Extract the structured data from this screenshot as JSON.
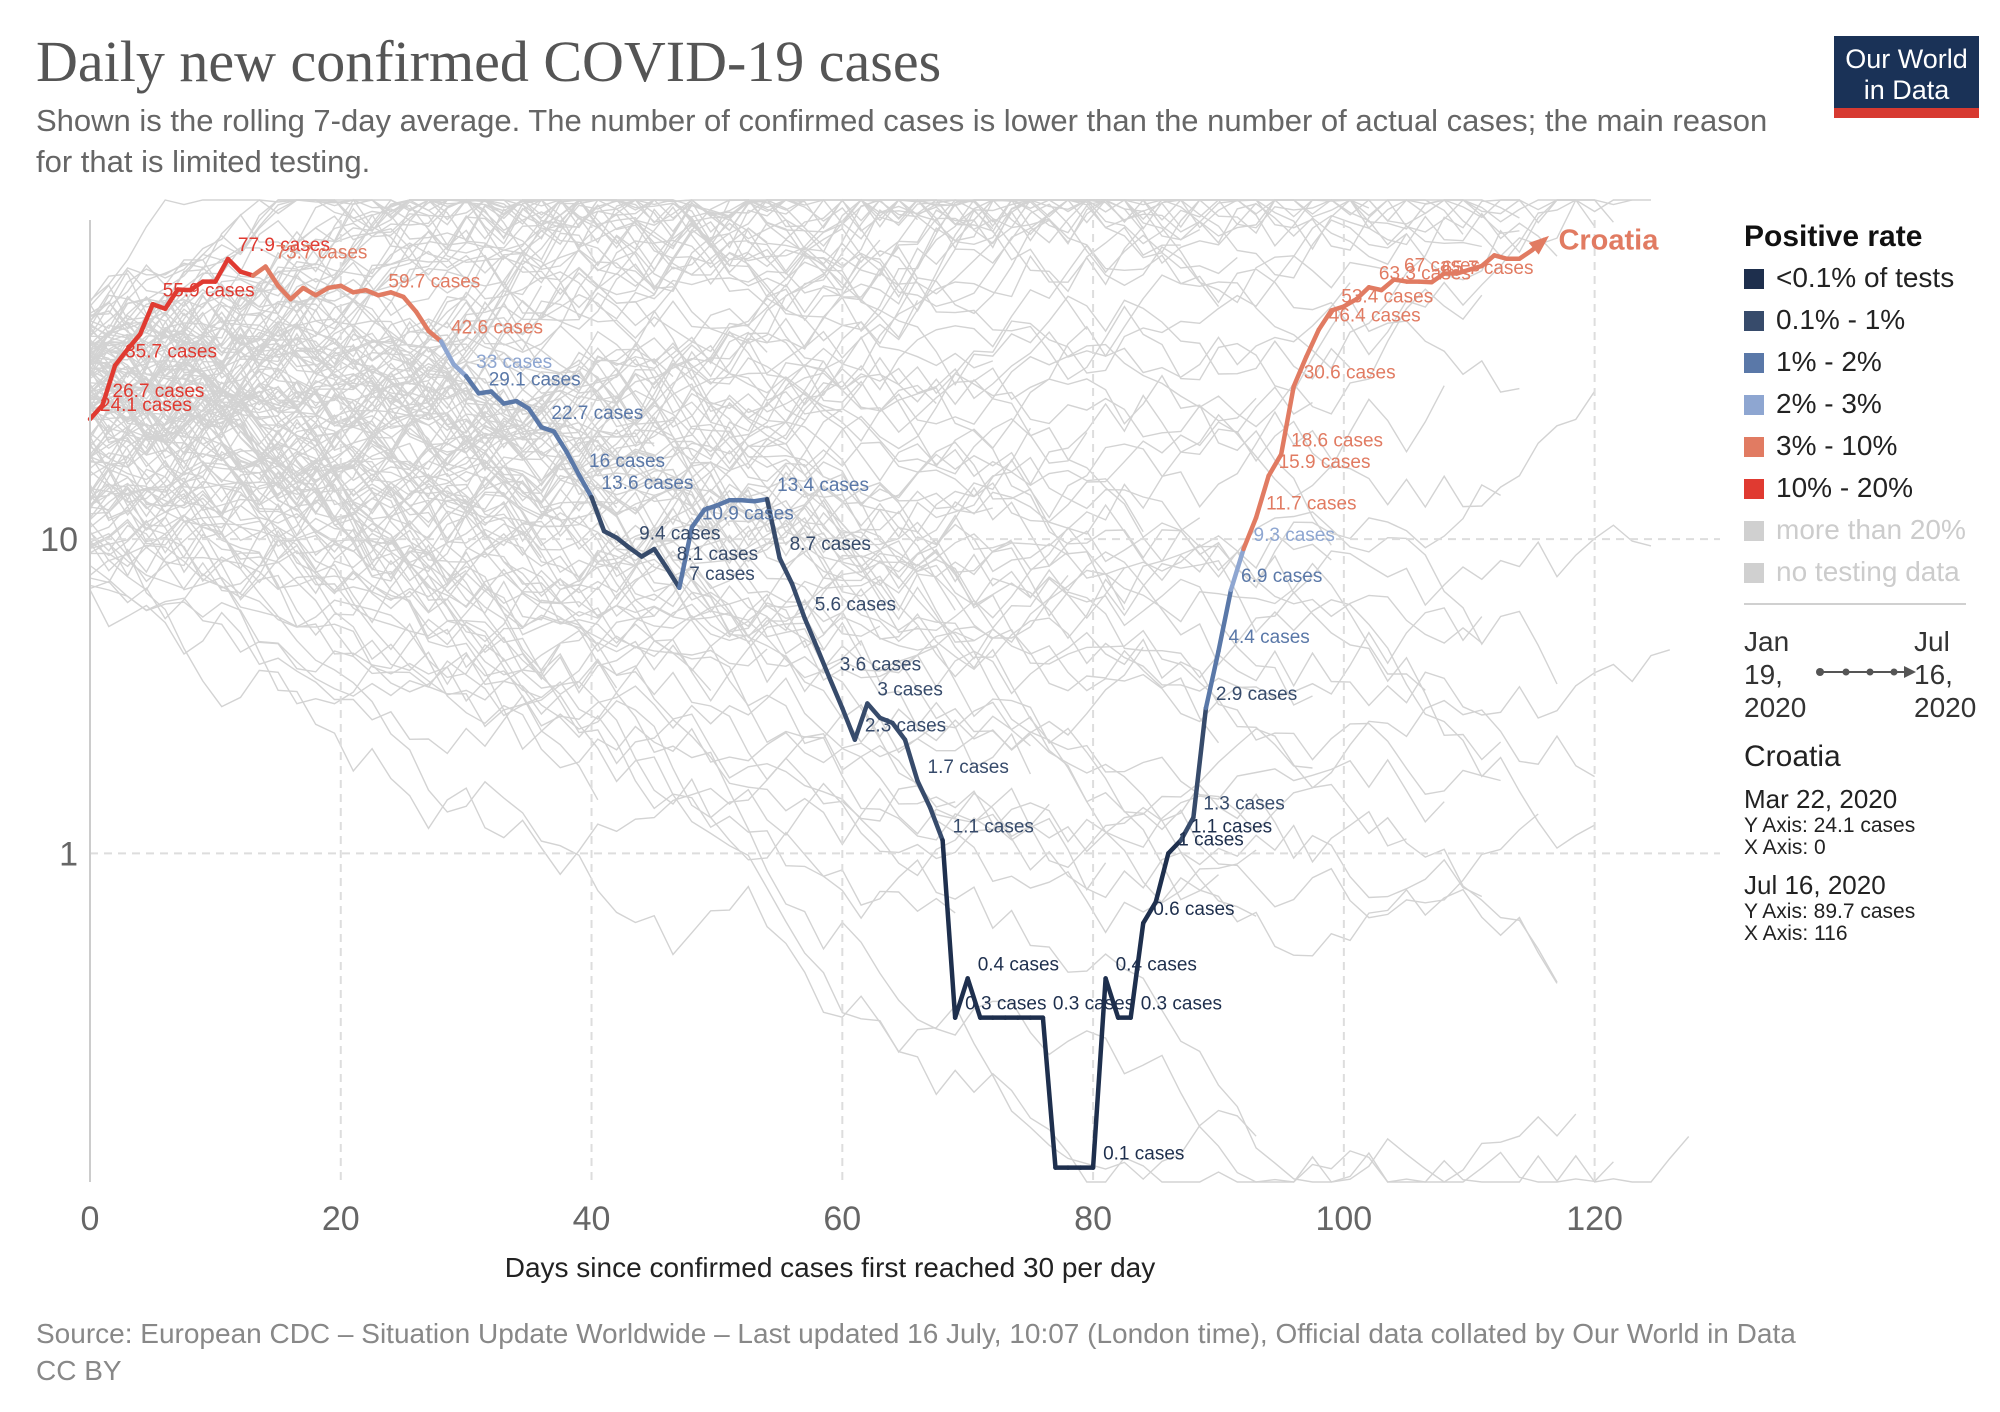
{
  "title": "Daily new confirmed COVID-19 cases",
  "subtitle": "Shown is the rolling 7-day average. The number of confirmed cases is lower than the number of actual cases; the main reason for that is limited testing.",
  "logo": {
    "line1": "Our World",
    "line2": "in Data",
    "bg": "#1a3257",
    "accent": "#d73a31"
  },
  "legend": {
    "title": "Positive rate",
    "items": [
      {
        "label": "<0.1% of tests",
        "color": "#1e2f4d"
      },
      {
        "label": "0.1% - 1%",
        "color": "#374b6b"
      },
      {
        "label": "1% - 2%",
        "color": "#5a78a8"
      },
      {
        "label": "2% - 3%",
        "color": "#8ea6d1"
      },
      {
        "label": "3% - 10%",
        "color": "#e17b62"
      },
      {
        "label": "10% - 20%",
        "color": "#e03a31"
      },
      {
        "label": "more than 20%",
        "color": "#d0d0d0"
      },
      {
        "label": "no testing data",
        "color": "#d0d0d0"
      }
    ]
  },
  "timeline": {
    "start": [
      "Jan",
      "19,",
      "2020"
    ],
    "end": [
      "Jul",
      "16,",
      "2020"
    ]
  },
  "info": {
    "name": "Croatia",
    "points": [
      {
        "date": "Mar 22, 2020",
        "y": "Y Axis: 24.1 cases",
        "x": "X Axis: 0"
      },
      {
        "date": "Jul 16, 2020",
        "y": "Y Axis: 89.7 cases",
        "x": "X Axis: 116"
      }
    ]
  },
  "source": "Source: European CDC – Situation Update Worldwide – Last updated 16 July, 10:07 (London time), Official data collated by Our World in Data",
  "license": "CC BY",
  "chart_data": {
    "type": "line",
    "title": "Daily new confirmed COVID-19 cases",
    "xlabel": "Days since confirmed cases first reached 30 per day",
    "ylabel": "",
    "y_scale": "log",
    "xlim": [
      0,
      130
    ],
    "ylim": [
      0.09,
      120
    ],
    "x_ticks": [
      0,
      20,
      40,
      60,
      80,
      100,
      120
    ],
    "y_ticks": [
      1,
      10
    ],
    "grid": true,
    "series_label": "Croatia",
    "series": [
      {
        "name": "Croatia",
        "points": [
          [
            0,
            24.1,
            "10-20"
          ],
          [
            1,
            26.7,
            "10-20"
          ],
          [
            2,
            35.7,
            "10-20"
          ],
          [
            3,
            40.2,
            "10-20"
          ],
          [
            4,
            44.9,
            "10-20"
          ],
          [
            5,
            55.9,
            "10-20"
          ],
          [
            6,
            54.1,
            "10-20"
          ],
          [
            7,
            62.3,
            "10-20"
          ],
          [
            8,
            62,
            "10-20"
          ],
          [
            9,
            66,
            "10-20"
          ],
          [
            10,
            66,
            "10-20"
          ],
          [
            11,
            77.9,
            "10-20"
          ],
          [
            12,
            71,
            "10-20"
          ],
          [
            13,
            69,
            "10-20"
          ],
          [
            14,
            73.7,
            "3-10"
          ],
          [
            15,
            64,
            "3-10"
          ],
          [
            16,
            58,
            "3-10"
          ],
          [
            17,
            63,
            "3-10"
          ],
          [
            18,
            59.7,
            "3-10"
          ],
          [
            19,
            63,
            "3-10"
          ],
          [
            20,
            64,
            "3-10"
          ],
          [
            21,
            61,
            "3-10"
          ],
          [
            22,
            62,
            "3-10"
          ],
          [
            23,
            59.7,
            "3-10"
          ],
          [
            24,
            61,
            "3-10"
          ],
          [
            25,
            59,
            "3-10"
          ],
          [
            26,
            53,
            "3-10"
          ],
          [
            27,
            46,
            "3-10"
          ],
          [
            28,
            42.6,
            "3-10"
          ],
          [
            29,
            36,
            "2-3"
          ],
          [
            30,
            33,
            "2-3"
          ],
          [
            31,
            29.1,
            "1-2"
          ],
          [
            32,
            29.5,
            "1-2"
          ],
          [
            33,
            27,
            "1-2"
          ],
          [
            34,
            27.5,
            "1-2"
          ],
          [
            35,
            26,
            "1-2"
          ],
          [
            36,
            22.7,
            "1-2"
          ],
          [
            37,
            22,
            "1-2"
          ],
          [
            38,
            19,
            "1-2"
          ],
          [
            39,
            16,
            "1-2"
          ],
          [
            40,
            13.6,
            "1-2"
          ],
          [
            41,
            10.6,
            "0.1-1"
          ],
          [
            42,
            10.1,
            "0.1-1"
          ],
          [
            43,
            9.4,
            "0.1-1"
          ],
          [
            44,
            8.8,
            "0.1-1"
          ],
          [
            45,
            9.3,
            "0.1-1"
          ],
          [
            46,
            8.1,
            "0.1-1"
          ],
          [
            47,
            7,
            "0.1-1"
          ],
          [
            48,
            10.9,
            "1-2"
          ],
          [
            49,
            12.4,
            "1-2"
          ],
          [
            50,
            12.8,
            "1-2"
          ],
          [
            51,
            13.3,
            "1-2"
          ],
          [
            52,
            13.3,
            "1-2"
          ],
          [
            53,
            13.2,
            "1-2"
          ],
          [
            54,
            13.4,
            "1-2"
          ],
          [
            55,
            8.7,
            "0.1-1"
          ],
          [
            56,
            7.2,
            "0.1-1"
          ],
          [
            57,
            5.6,
            "0.1-1"
          ],
          [
            58,
            4.5,
            "0.1-1"
          ],
          [
            59,
            3.6,
            "0.1-1"
          ],
          [
            60,
            2.9,
            "0.1-1"
          ],
          [
            61,
            2.3,
            "0.1-1"
          ],
          [
            62,
            3,
            "0.1-1"
          ],
          [
            63,
            2.7,
            "0.1-1"
          ],
          [
            64,
            2.6,
            "0.1-1"
          ],
          [
            65,
            2.3,
            "0.1-1"
          ],
          [
            66,
            1.7,
            "0.1-1"
          ],
          [
            67,
            1.4,
            "0.1-1"
          ],
          [
            68,
            1.1,
            "0.1-1"
          ],
          [
            69,
            0.3,
            "<0.1"
          ],
          [
            70,
            0.4,
            "<0.1"
          ],
          [
            71,
            0.3,
            "<0.1"
          ],
          [
            72,
            0.3,
            "<0.1"
          ],
          [
            73,
            0.3,
            "<0.1"
          ],
          [
            74,
            0.3,
            "<0.1"
          ],
          [
            75,
            0.3,
            "<0.1"
          ],
          [
            76,
            0.3,
            "<0.1"
          ],
          [
            77,
            0.1,
            "<0.1"
          ],
          [
            78,
            0.1,
            "<0.1"
          ],
          [
            79,
            0.1,
            "<0.1"
          ],
          [
            80,
            0.1,
            "<0.1"
          ],
          [
            81,
            0.4,
            "<0.1"
          ],
          [
            82,
            0.3,
            "<0.1"
          ],
          [
            83,
            0.3,
            "<0.1"
          ],
          [
            84,
            0.6,
            "<0.1"
          ],
          [
            85,
            0.7,
            "<0.1"
          ],
          [
            86,
            1,
            "<0.1"
          ],
          [
            87,
            1.1,
            "<0.1"
          ],
          [
            88,
            1.3,
            "0.1-1"
          ],
          [
            89,
            2.9,
            "0.1-1"
          ],
          [
            90,
            4.4,
            "1-2"
          ],
          [
            91,
            6.9,
            "1-2"
          ],
          [
            92,
            9.3,
            "2-3"
          ],
          [
            93,
            11.7,
            "3-10"
          ],
          [
            94,
            15.9,
            "3-10"
          ],
          [
            95,
            18.6,
            "3-10"
          ],
          [
            96,
            30.6,
            "3-10"
          ],
          [
            97,
            38,
            "3-10"
          ],
          [
            98,
            46.4,
            "3-10"
          ],
          [
            99,
            53.4,
            "3-10"
          ],
          [
            100,
            55,
            "3-10"
          ],
          [
            101,
            58,
            "3-10"
          ],
          [
            102,
            63.3,
            "3-10"
          ],
          [
            103,
            62,
            "3-10"
          ],
          [
            104,
            67,
            "3-10"
          ],
          [
            105,
            66,
            "3-10"
          ],
          [
            106,
            66,
            "3-10"
          ],
          [
            107,
            65.7,
            "3-10"
          ],
          [
            108,
            70,
            "3-10"
          ],
          [
            109,
            70,
            "3-10"
          ],
          [
            110,
            72,
            "3-10"
          ],
          [
            111,
            74,
            "3-10"
          ],
          [
            112,
            80,
            "3-10"
          ],
          [
            113,
            78,
            "3-10"
          ],
          [
            114,
            78,
            "3-10"
          ],
          [
            115,
            83,
            "3-10"
          ],
          [
            116,
            89.7,
            "3-10"
          ]
        ]
      }
    ],
    "annotations": [
      {
        "x": 0,
        "y": 24.1,
        "text": "24.1 cases"
      },
      {
        "x": 1,
        "y": 26.7,
        "text": "26.7 cases"
      },
      {
        "x": 2,
        "y": 35.7,
        "text": "35.7 cases"
      },
      {
        "x": 5,
        "y": 55.9,
        "text": "55.9 cases"
      },
      {
        "x": 11,
        "y": 77.9,
        "text": "77.9 cases"
      },
      {
        "x": 14,
        "y": 73.7,
        "text": "73.7 cases"
      },
      {
        "x": 23,
        "y": 59.7,
        "text": "59.7 cases"
      },
      {
        "x": 28,
        "y": 42.6,
        "text": "42.6 cases"
      },
      {
        "x": 30,
        "y": 33,
        "text": "33 cases"
      },
      {
        "x": 31,
        "y": 29.1,
        "text": "29.1 cases"
      },
      {
        "x": 36,
        "y": 22.7,
        "text": "22.7 cases"
      },
      {
        "x": 39,
        "y": 16,
        "text": "16 cases"
      },
      {
        "x": 40,
        "y": 13.6,
        "text": "13.6 cases"
      },
      {
        "x": 48,
        "y": 10.9,
        "text": "10.9 cases"
      },
      {
        "x": 54,
        "y": 13.4,
        "text": "13.4 cases"
      },
      {
        "x": 43,
        "y": 9.4,
        "text": "9.4 cases"
      },
      {
        "x": 46,
        "y": 8.1,
        "text": "8.1 cases"
      },
      {
        "x": 55,
        "y": 8.7,
        "text": "8.7 cases"
      },
      {
        "x": 47,
        "y": 7,
        "text": "7 cases"
      },
      {
        "x": 57,
        "y": 5.6,
        "text": "5.6 cases"
      },
      {
        "x": 59,
        "y": 3.6,
        "text": "3.6 cases"
      },
      {
        "x": 62,
        "y": 3,
        "text": "3 cases"
      },
      {
        "x": 61,
        "y": 2.3,
        "text": "2.3 cases"
      },
      {
        "x": 66,
        "y": 1.7,
        "text": "1.7 cases"
      },
      {
        "x": 68,
        "y": 1.1,
        "text": "1.1 cases"
      },
      {
        "x": 70,
        "y": 0.4,
        "text": "0.4 cases"
      },
      {
        "x": 69,
        "y": 0.3,
        "text": "0.3 cases"
      },
      {
        "x": 76,
        "y": 0.3,
        "text": "0.3 cases"
      },
      {
        "x": 80,
        "y": 0.1,
        "text": "0.1 cases"
      },
      {
        "x": 81,
        "y": 0.4,
        "text": "0.4 cases"
      },
      {
        "x": 83,
        "y": 0.3,
        "text": "0.3 cases"
      },
      {
        "x": 84,
        "y": 0.6,
        "text": "0.6 cases"
      },
      {
        "x": 86,
        "y": 1,
        "text": "1 cases"
      },
      {
        "x": 87,
        "y": 1.1,
        "text": "1.1 cases"
      },
      {
        "x": 88,
        "y": 1.3,
        "text": "1.3 cases"
      },
      {
        "x": 89,
        "y": 2.9,
        "text": "2.9 cases"
      },
      {
        "x": 90,
        "y": 4.4,
        "text": "4.4 cases"
      },
      {
        "x": 91,
        "y": 6.9,
        "text": "6.9 cases"
      },
      {
        "x": 92,
        "y": 9.3,
        "text": "9.3 cases"
      },
      {
        "x": 93,
        "y": 11.7,
        "text": "11.7 cases"
      },
      {
        "x": 94,
        "y": 15.9,
        "text": "15.9 cases"
      },
      {
        "x": 95,
        "y": 18.6,
        "text": "18.6 cases"
      },
      {
        "x": 96,
        "y": 30.6,
        "text": "30.6 cases"
      },
      {
        "x": 98,
        "y": 46.4,
        "text": "46.4 cases"
      },
      {
        "x": 99,
        "y": 53.4,
        "text": "53.4 cases"
      },
      {
        "x": 102,
        "y": 63.3,
        "text": "63.3 cases"
      },
      {
        "x": 104,
        "y": 67,
        "text": "67 cases"
      },
      {
        "x": 107,
        "y": 65.7,
        "text": "65.7 cases"
      }
    ]
  }
}
